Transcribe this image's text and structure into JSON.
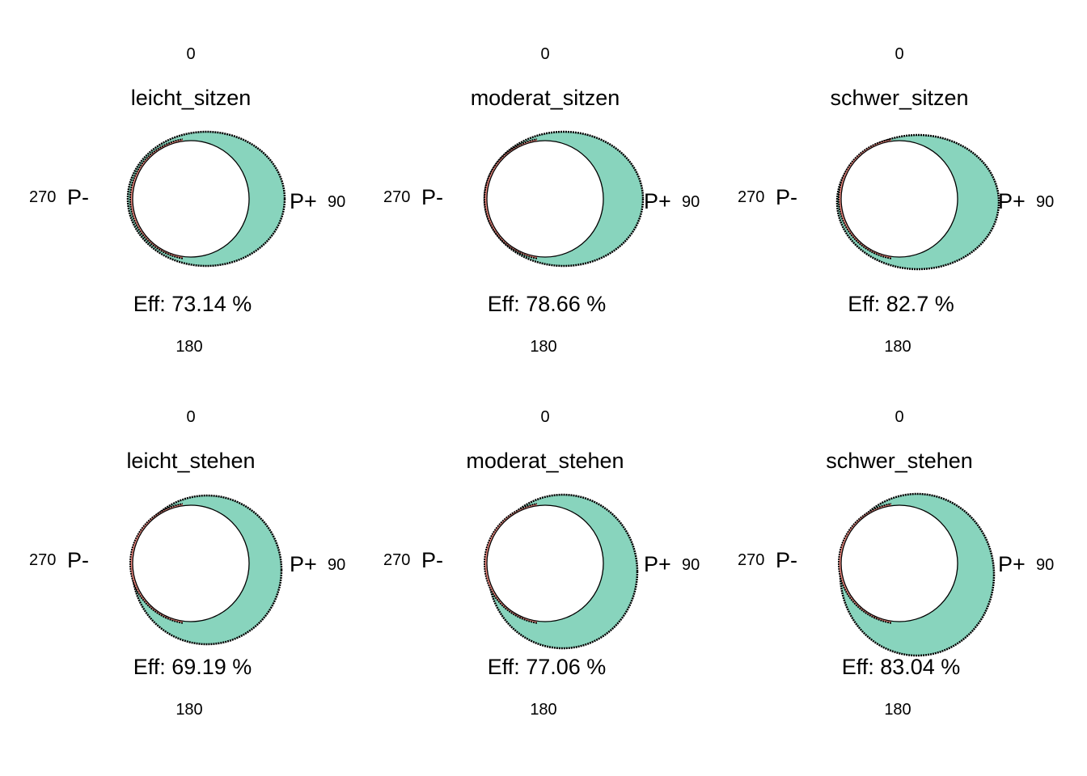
{
  "chart_data": [
    {
      "type": "polar",
      "title": "leicht_sitzen",
      "angle_labels": {
        "top": "0",
        "right": "90",
        "bottom": "180",
        "left": "270"
      },
      "pos_label": "P+",
      "neg_label": "P-",
      "efficiency_label": "Eff: 73.14 %",
      "efficiency": 73.14,
      "colors": {
        "positive": "#88d4bd",
        "negative": "#f28b82"
      }
    },
    {
      "type": "polar",
      "title": "moderat_sitzen",
      "angle_labels": {
        "top": "0",
        "right": "90",
        "bottom": "180",
        "left": "270"
      },
      "pos_label": "P+",
      "neg_label": "P-",
      "efficiency_label": "Eff: 78.66 %",
      "efficiency": 78.66,
      "colors": {
        "positive": "#88d4bd",
        "negative": "#f28b82"
      }
    },
    {
      "type": "polar",
      "title": "schwer_sitzen",
      "angle_labels": {
        "top": "0",
        "right": "90",
        "bottom": "180",
        "left": "270"
      },
      "pos_label": "P+",
      "neg_label": "P-",
      "efficiency_label": "Eff: 82.7 %",
      "efficiency": 82.7,
      "colors": {
        "positive": "#88d4bd",
        "negative": "#f28b82"
      }
    },
    {
      "type": "polar",
      "title": "leicht_stehen",
      "angle_labels": {
        "top": "0",
        "right": "90",
        "bottom": "180",
        "left": "270"
      },
      "pos_label": "P+",
      "neg_label": "P-",
      "efficiency_label": "Eff: 69.19 %",
      "efficiency": 69.19,
      "colors": {
        "positive": "#88d4bd",
        "negative": "#f28b82"
      }
    },
    {
      "type": "polar",
      "title": "moderat_stehen",
      "angle_labels": {
        "top": "0",
        "right": "90",
        "bottom": "180",
        "left": "270"
      },
      "pos_label": "P+",
      "neg_label": "P-",
      "efficiency_label": "Eff: 77.06 %",
      "efficiency": 77.06,
      "colors": {
        "positive": "#88d4bd",
        "negative": "#f28b82"
      }
    },
    {
      "type": "polar",
      "title": "schwer_stehen",
      "angle_labels": {
        "top": "0",
        "right": "90",
        "bottom": "180",
        "left": "270"
      },
      "pos_label": "P+",
      "neg_label": "P-",
      "efficiency_label": "Eff: 83.04 %",
      "efficiency": 83.04,
      "colors": {
        "positive": "#88d4bd",
        "negative": "#f28b82"
      }
    }
  ]
}
